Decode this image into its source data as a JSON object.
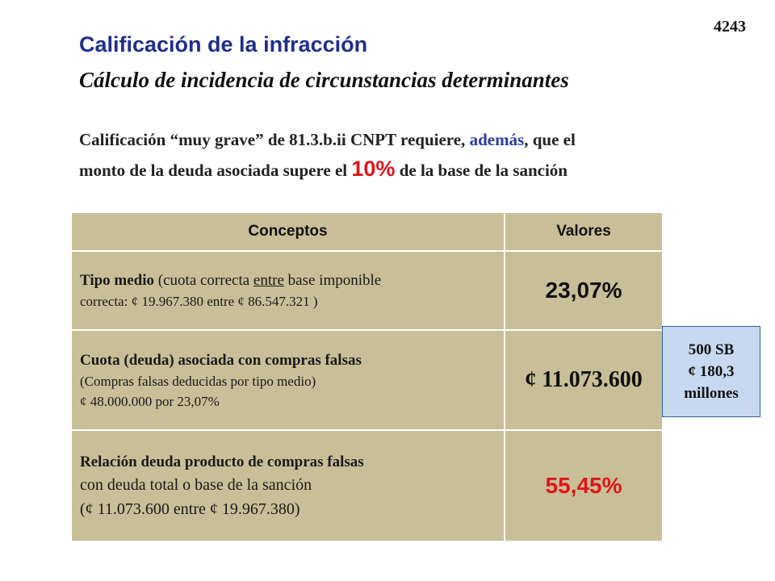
{
  "slide_number": "4243",
  "title": "Calificación de la infracción",
  "subtitle": "Cálculo de incidencia de circunstancias determinantes",
  "intro": {
    "part1": "Calificación  “muy grave” de  81.3.b.ii CNPT requiere,",
    "emphasis": "además",
    "part2": ",  que el",
    "part3": "monto de la deuda asociada  supere el",
    "percent": "10%",
    "part4": "de la base de la sanción"
  },
  "table": {
    "headers": [
      "Conceptos",
      "Valores"
    ],
    "rows": [
      {
        "concept_bold": "Tipo medio",
        "concept_paren_pre": " (cuota  correcta ",
        "concept_underlined": "entre",
        "concept_paren_post": "  base imponible",
        "concept_line2": "correcta: ¢ 19.967.380 entre ¢ 86.547.321 )",
        "value": "23,07%"
      },
      {
        "concept_bold": "Cuota  (deuda) asociada  con compras falsas",
        "concept_line2": "(Compras falsas deducidas  por tipo medio)",
        "concept_line3": "¢ 48.000.000  por 23,07%",
        "value": "¢ 11.073.600"
      },
      {
        "concept_bold": "Relación deuda producto de  compras falsas",
        "concept_line2": "con deuda total o base de la sanción",
        "concept_line3": " (¢ 11.073.600 entre ¢ 19.967.380)",
        "value": "55,45%"
      }
    ]
  },
  "side_box": {
    "line1": "500 SB",
    "line2": "¢ 180,3",
    "line3": "millones"
  },
  "colors": {
    "title": "#1f2f8c",
    "emphasis": "#2b3d9e",
    "accent_red": "#e0141a",
    "table_fill": "#c8bf98",
    "side_box_fill": "#c6d9f1"
  }
}
